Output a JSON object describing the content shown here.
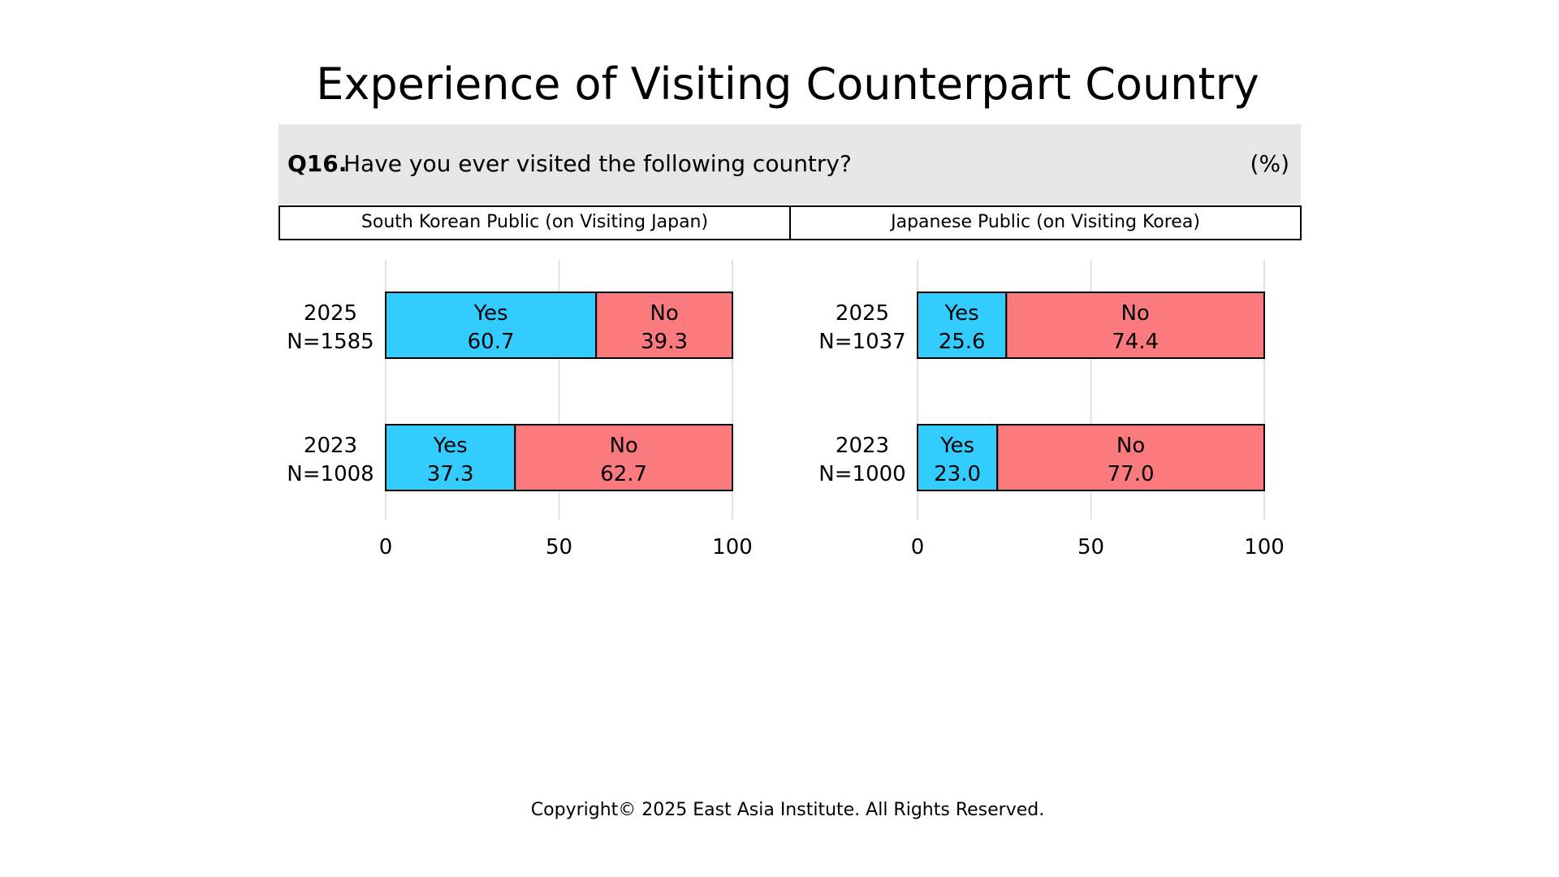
{
  "title": "Experience of Visiting Counterpart Country",
  "question": {
    "number": "Q16.",
    "text": "Have you ever visited the following country?",
    "unit": "(%)"
  },
  "footer": "Copyright© 2025 East Asia Institute. All Rights Reserved.",
  "colors": {
    "yes": "#33ccff",
    "no": "#fa7a7e",
    "header_bg": "#e6e6e6"
  },
  "chart_data": [
    {
      "type": "bar",
      "stacked": true,
      "orientation": "horizontal",
      "title": "South Korean Public (on Visiting Japan)",
      "categories": [
        "2025\nN=1585",
        "2023\nN=1008"
      ],
      "category_lines": [
        [
          "2025",
          "N=1585"
        ],
        [
          "2023",
          "N=1008"
        ]
      ],
      "series": [
        {
          "name": "Yes",
          "values": [
            60.7,
            37.3
          ]
        },
        {
          "name": "No",
          "values": [
            39.3,
            62.7
          ]
        }
      ],
      "xlim": [
        0,
        100
      ],
      "xticks": [
        0,
        50,
        100
      ],
      "grid": true
    },
    {
      "type": "bar",
      "stacked": true,
      "orientation": "horizontal",
      "title": "Japanese Public (on Visiting Korea)",
      "categories": [
        "2025\nN=1037",
        "2023\nN=1000"
      ],
      "category_lines": [
        [
          "2025",
          "N=1037"
        ],
        [
          "2023",
          "N=1000"
        ]
      ],
      "series": [
        {
          "name": "Yes",
          "values": [
            25.6,
            23.0
          ]
        },
        {
          "name": "No",
          "values": [
            74.4,
            77.0
          ]
        }
      ],
      "xlim": [
        0,
        100
      ],
      "xticks": [
        0,
        50,
        100
      ],
      "grid": true
    }
  ]
}
